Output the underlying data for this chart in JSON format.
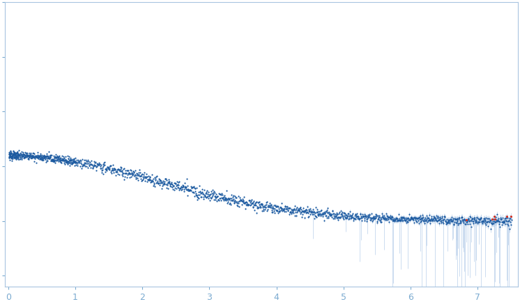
{
  "title": "",
  "xlim": [
    -0.05,
    7.6
  ],
  "ylim": [
    -0.6,
    2.0
  ],
  "xticks": [
    0,
    1,
    2,
    3,
    4,
    5,
    6,
    7
  ],
  "dot_color_blue": "#1c5aa0",
  "dot_color_red": "#d43020",
  "error_color": "#b8cfea",
  "axis_color": "#a8c4e0",
  "tick_color": "#7aaad0",
  "background": "#ffffff",
  "dot_size": 2.5,
  "figsize": [
    7.46,
    4.37
  ],
  "dpi": 100
}
